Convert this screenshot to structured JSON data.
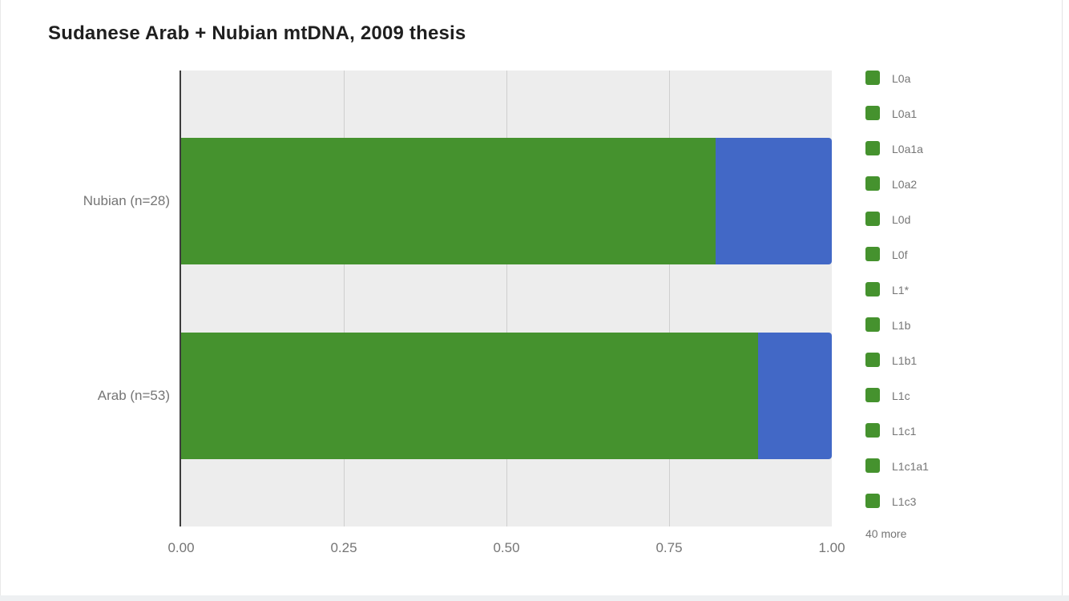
{
  "title": "Sudanese Arab + Nubian mtDNA, 2009 thesis",
  "colors": {
    "green": "#45922e",
    "blue": "#4268c6",
    "plot_background": "#ededed",
    "gridline": "#cfcfcf",
    "axis_line": "#3d3d3d",
    "label_text": "#757575",
    "title_text": "#1f1f1f"
  },
  "chart_data": {
    "type": "bar",
    "orientation": "horizontal",
    "stacked": true,
    "title": "Sudanese Arab + Nubian mtDNA, 2009 thesis",
    "categories": [
      "Nubian (n=28)",
      "Arab (n=53)"
    ],
    "series": [
      {
        "name": "green-segment",
        "color": "#45922e",
        "values": [
          0.821,
          0.887
        ]
      },
      {
        "name": "blue-segment",
        "color": "#4268c6",
        "values": [
          0.179,
          0.113
        ]
      }
    ],
    "xlabel": "",
    "ylabel": "",
    "xlim": [
      0,
      1
    ],
    "x_ticks": [
      {
        "value": 0.0,
        "label": "0.00"
      },
      {
        "value": 0.25,
        "label": "0.25"
      },
      {
        "value": 0.5,
        "label": "0.50"
      },
      {
        "value": 0.75,
        "label": "0.75"
      },
      {
        "value": 1.0,
        "label": "1.00"
      }
    ],
    "grid": true,
    "legend": {
      "position": "right",
      "swatch_color": "#45922e",
      "entries": [
        "L0a",
        "L0a1",
        "L0a1a",
        "L0a2",
        "L0d",
        "L0f",
        "L1*",
        "L1b",
        "L1b1",
        "L1c",
        "L1c1",
        "L1c1a1",
        "L1c3"
      ],
      "overflow_label": "40 more"
    }
  }
}
